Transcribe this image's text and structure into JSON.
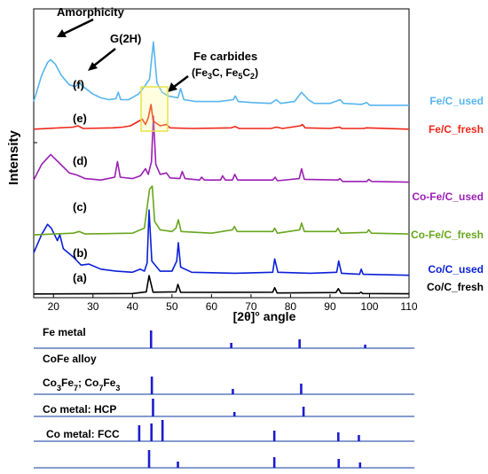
{
  "chart_data": [
    {
      "type": "line",
      "xlabel": "[2θ]° angle",
      "ylabel": "Intensity",
      "xlim": [
        15,
        110
      ],
      "xticks": [
        20,
        30,
        40,
        50,
        60,
        70,
        80,
        90,
        100,
        110
      ],
      "grid": false,
      "series": [
        {
          "key": "a",
          "name": "Co/C_fresh",
          "tag": "(a)",
          "color": "#000000",
          "points": [
            [
              15,
              0.1
            ],
            [
              40,
              0.3
            ],
            [
              43.5,
              1.2
            ],
            [
              44.2,
              9.5
            ],
            [
              45.2,
              1.0
            ],
            [
              51,
              1.2
            ],
            [
              51.5,
              5.0
            ],
            [
              52.2,
              0.9
            ],
            [
              75.5,
              1.0
            ],
            [
              76,
              3.3
            ],
            [
              76.6,
              0.6
            ],
            [
              91.5,
              0.8
            ],
            [
              92.1,
              2.8
            ],
            [
              92.8,
              0.5
            ],
            [
              97.4,
              0.4
            ],
            [
              97.8,
              1.0
            ],
            [
              98.3,
              0.3
            ],
            [
              110,
              0.2
            ]
          ]
        },
        {
          "key": "b",
          "name": "Co/C_used",
          "tag": "(b)",
          "color": "#0a1fd8",
          "points": [
            [
              15,
              12
            ],
            [
              17,
              21
            ],
            [
              18.5,
              26
            ],
            [
              19.5,
              24
            ],
            [
              21,
              18
            ],
            [
              21.6,
              21
            ],
            [
              22.5,
              14
            ],
            [
              25,
              10
            ],
            [
              27,
              6
            ],
            [
              29,
              6.5
            ],
            [
              32,
              4
            ],
            [
              36,
              3
            ],
            [
              40,
              2.5
            ],
            [
              42,
              4
            ],
            [
              43,
              3
            ],
            [
              43.7,
              7
            ],
            [
              44.2,
              33
            ],
            [
              44.9,
              8
            ],
            [
              47,
              3
            ],
            [
              50,
              3
            ],
            [
              51.2,
              8
            ],
            [
              51.6,
              17
            ],
            [
              52.2,
              5
            ],
            [
              55,
              2.5
            ],
            [
              66,
              2
            ],
            [
              75.5,
              2.5
            ],
            [
              76,
              9
            ],
            [
              76.8,
              2.5
            ],
            [
              85,
              2
            ],
            [
              91.7,
              2.5
            ],
            [
              92.2,
              8
            ],
            [
              92.9,
              2
            ],
            [
              97.5,
              1.5
            ],
            [
              97.9,
              4
            ],
            [
              98.4,
              1.5
            ],
            [
              110,
              1
            ]
          ]
        },
        {
          "key": "c",
          "name": "Co-Fe/C_fresh",
          "tag": "(c)",
          "color": "#67a61c",
          "points": [
            [
              15,
              1
            ],
            [
              25,
              2
            ],
            [
              26.5,
              3
            ],
            [
              28,
              1.5
            ],
            [
              40,
              2
            ],
            [
              43,
              5
            ],
            [
              44.3,
              28
            ],
            [
              45,
              30
            ],
            [
              45.6,
              9
            ],
            [
              47,
              4
            ],
            [
              50,
              3
            ],
            [
              51,
              5
            ],
            [
              51.6,
              10
            ],
            [
              52.3,
              3
            ],
            [
              60,
              2
            ],
            [
              65.3,
              4
            ],
            [
              65.8,
              6
            ],
            [
              66.5,
              3
            ],
            [
              75.5,
              3
            ],
            [
              76,
              5
            ],
            [
              76.7,
              2
            ],
            [
              82.3,
              4
            ],
            [
              82.8,
              8
            ],
            [
              83.5,
              3
            ],
            [
              91.5,
              3
            ],
            [
              92,
              5
            ],
            [
              92.7,
              2
            ],
            [
              99.3,
              2.5
            ],
            [
              99.8,
              4
            ],
            [
              100.5,
              2
            ],
            [
              110,
              1.5
            ]
          ]
        },
        {
          "key": "d",
          "name": "Co-Fe/C_used",
          "tag": "(d)",
          "color": "#9b1fb4",
          "points": [
            [
              15,
              3
            ],
            [
              17,
              14
            ],
            [
              19.3,
              21
            ],
            [
              21.5,
              15
            ],
            [
              24,
              8
            ],
            [
              26,
              6.5
            ],
            [
              28,
              4
            ],
            [
              32,
              3
            ],
            [
              35.5,
              5
            ],
            [
              36.2,
              16
            ],
            [
              36.9,
              5
            ],
            [
              40,
              4
            ],
            [
              42,
              6
            ],
            [
              43.3,
              11
            ],
            [
              44,
              7
            ],
            [
              44.8,
              16
            ],
            [
              45.3,
              48
            ],
            [
              45.9,
              14
            ],
            [
              47,
              7
            ],
            [
              48.6,
              8
            ],
            [
              49.5,
              4.5
            ],
            [
              52,
              4
            ],
            [
              52.6,
              9
            ],
            [
              53.3,
              4
            ],
            [
              57,
              3
            ],
            [
              57.5,
              5
            ],
            [
              58.2,
              3
            ],
            [
              62.3,
              3
            ],
            [
              62.8,
              6
            ],
            [
              63.5,
              3
            ],
            [
              65.3,
              3
            ],
            [
              65.9,
              7
            ],
            [
              66.6,
              3
            ],
            [
              75.5,
              3
            ],
            [
              76.1,
              5
            ],
            [
              76.7,
              2.5
            ],
            [
              82.2,
              4
            ],
            [
              82.8,
              11
            ],
            [
              83.5,
              3.5
            ],
            [
              92,
              3
            ],
            [
              92.5,
              4
            ],
            [
              93.2,
              2
            ],
            [
              99.3,
              2
            ],
            [
              99.8,
              3.5
            ],
            [
              100.5,
              2
            ],
            [
              110,
              1.5
            ]
          ]
        },
        {
          "key": "e",
          "name": "Fe/C_fresh",
          "tag": "(e)",
          "color": "#ee2618",
          "points": [
            [
              15,
              1.5
            ],
            [
              25,
              3
            ],
            [
              26.2,
              4
            ],
            [
              27.5,
              2
            ],
            [
              35,
              2.5
            ],
            [
              37.5,
              3
            ],
            [
              39.5,
              4
            ],
            [
              42.5,
              9
            ],
            [
              43.3,
              5
            ],
            [
              44,
              10
            ],
            [
              44.7,
              20
            ],
            [
              45.2,
              8
            ],
            [
              46,
              6
            ],
            [
              47,
              4
            ],
            [
              48.6,
              5
            ],
            [
              49.5,
              2.5
            ],
            [
              55,
              2
            ],
            [
              65,
              2.5
            ],
            [
              66,
              3.5
            ],
            [
              67,
              2
            ],
            [
              75,
              2
            ],
            [
              76.5,
              3
            ],
            [
              78,
              2
            ],
            [
              82.5,
              4
            ],
            [
              83,
              5
            ],
            [
              83.7,
              2.5
            ],
            [
              90,
              2
            ],
            [
              92.4,
              3
            ],
            [
              93,
              2
            ],
            [
              98.5,
              2
            ],
            [
              99.2,
              2.5
            ],
            [
              110,
              1.5
            ]
          ]
        },
        {
          "key": "f",
          "name": "Fe/C_used",
          "tag": "(f)",
          "color": "#56b5ee",
          "points": [
            [
              15,
              4
            ],
            [
              17,
              18
            ],
            [
              18.5,
              25
            ],
            [
              19.3,
              26.5
            ],
            [
              20.5,
              24
            ],
            [
              22,
              18
            ],
            [
              24,
              13
            ],
            [
              25.5,
              12
            ],
            [
              26.5,
              14
            ],
            [
              27.5,
              12
            ],
            [
              30,
              8
            ],
            [
              32,
              6
            ],
            [
              34,
              5
            ],
            [
              35.8,
              5.5
            ],
            [
              36.4,
              9
            ],
            [
              37,
              5
            ],
            [
              39,
              5
            ],
            [
              41.5,
              8
            ],
            [
              43,
              12
            ],
            [
              44.3,
              16
            ],
            [
              45.3,
              36
            ],
            [
              46.2,
              14
            ],
            [
              47.5,
              9
            ],
            [
              49,
              7
            ],
            [
              51.5,
              6
            ],
            [
              52.2,
              11
            ],
            [
              53,
              5
            ],
            [
              56,
              4
            ],
            [
              59,
              4
            ],
            [
              62,
              4
            ],
            [
              65.5,
              5
            ],
            [
              66,
              7
            ],
            [
              66.8,
              4
            ],
            [
              70,
              3.5
            ],
            [
              75,
              3
            ],
            [
              76.4,
              5
            ],
            [
              77.5,
              3
            ],
            [
              81,
              4
            ],
            [
              82.8,
              9
            ],
            [
              84.5,
              5
            ],
            [
              86,
              3
            ],
            [
              90,
              3
            ],
            [
              92.6,
              5
            ],
            [
              93.4,
              3
            ],
            [
              98,
              2.5
            ],
            [
              99.3,
              3.5
            ],
            [
              100,
              2
            ],
            [
              110,
              2
            ]
          ]
        }
      ],
      "annotations": {
        "amorphicity": "Amorphicity",
        "graphite": "G(2H)",
        "fe_carbides_line1": "Fe carbides",
        "fe_carbides_line2": "(Fe3C, Fe5C2)"
      }
    },
    {
      "type": "bar",
      "xlim": [
        15,
        110
      ],
      "rows": [
        {
          "label": "Fe metal",
          "positions": [
            44.7,
            65.0,
            82.3,
            98.9
          ],
          "heights": [
            1.0,
            0.3,
            0.5,
            0.2
          ]
        },
        {
          "label": "CoFe alloy",
          "positions": [
            44.9,
            65.4,
            82.7
          ],
          "heights": [
            1.0,
            0.3,
            0.6
          ]
        },
        {
          "label": "Co3Fe7; Co7Fe3",
          "positions": [
            45.2,
            65.8,
            83.3
          ],
          "heights": [
            1.0,
            0.25,
            0.55
          ]
        },
        {
          "label": "Co metal: HCP",
          "positions": [
            41.7,
            44.8,
            47.6,
            75.9,
            92.1,
            97.3
          ],
          "heights": [
            0.9,
            1.0,
            1.2,
            0.6,
            0.5,
            0.35
          ]
        },
        {
          "label": "Co metal: FCC",
          "positions": [
            44.2,
            51.5,
            75.9,
            92.2,
            97.6
          ],
          "heights": [
            1.0,
            0.35,
            0.6,
            0.5,
            0.3
          ]
        }
      ]
    }
  ]
}
